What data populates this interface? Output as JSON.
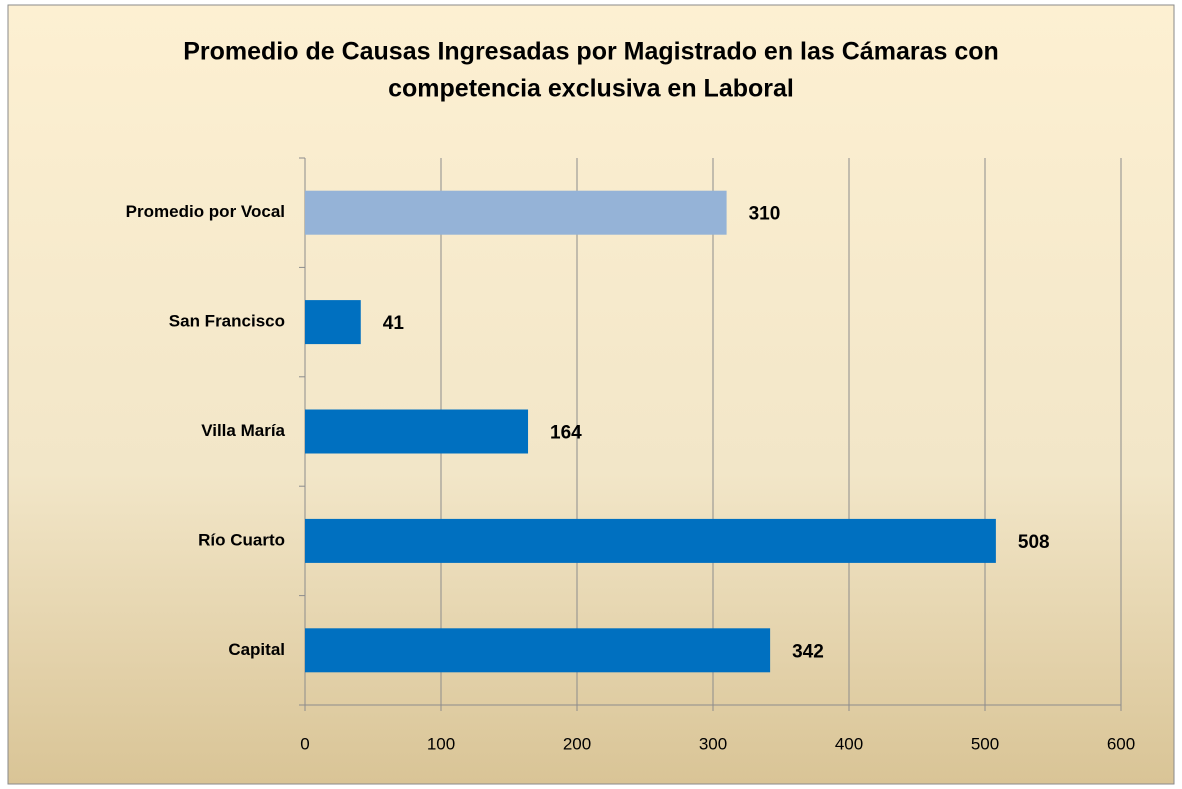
{
  "chart_data": {
    "type": "bar",
    "orientation": "horizontal",
    "title": [
      "Promedio de Causas Ingresadas por Magistrado en las Cámaras con",
      "competencia exclusiva en Laboral"
    ],
    "categories": [
      "Promedio por Vocal",
      "San Francisco",
      "Villa María",
      "Río Cuarto",
      "Capital"
    ],
    "values": [
      310,
      41,
      164,
      508,
      342
    ],
    "colors": [
      "#95b3d7",
      "#0070c0",
      "#0070c0",
      "#0070c0",
      "#0070c0"
    ],
    "xlim": [
      0,
      600
    ],
    "xticks": [
      0,
      100,
      200,
      300,
      400,
      500,
      600
    ],
    "grid": true
  }
}
